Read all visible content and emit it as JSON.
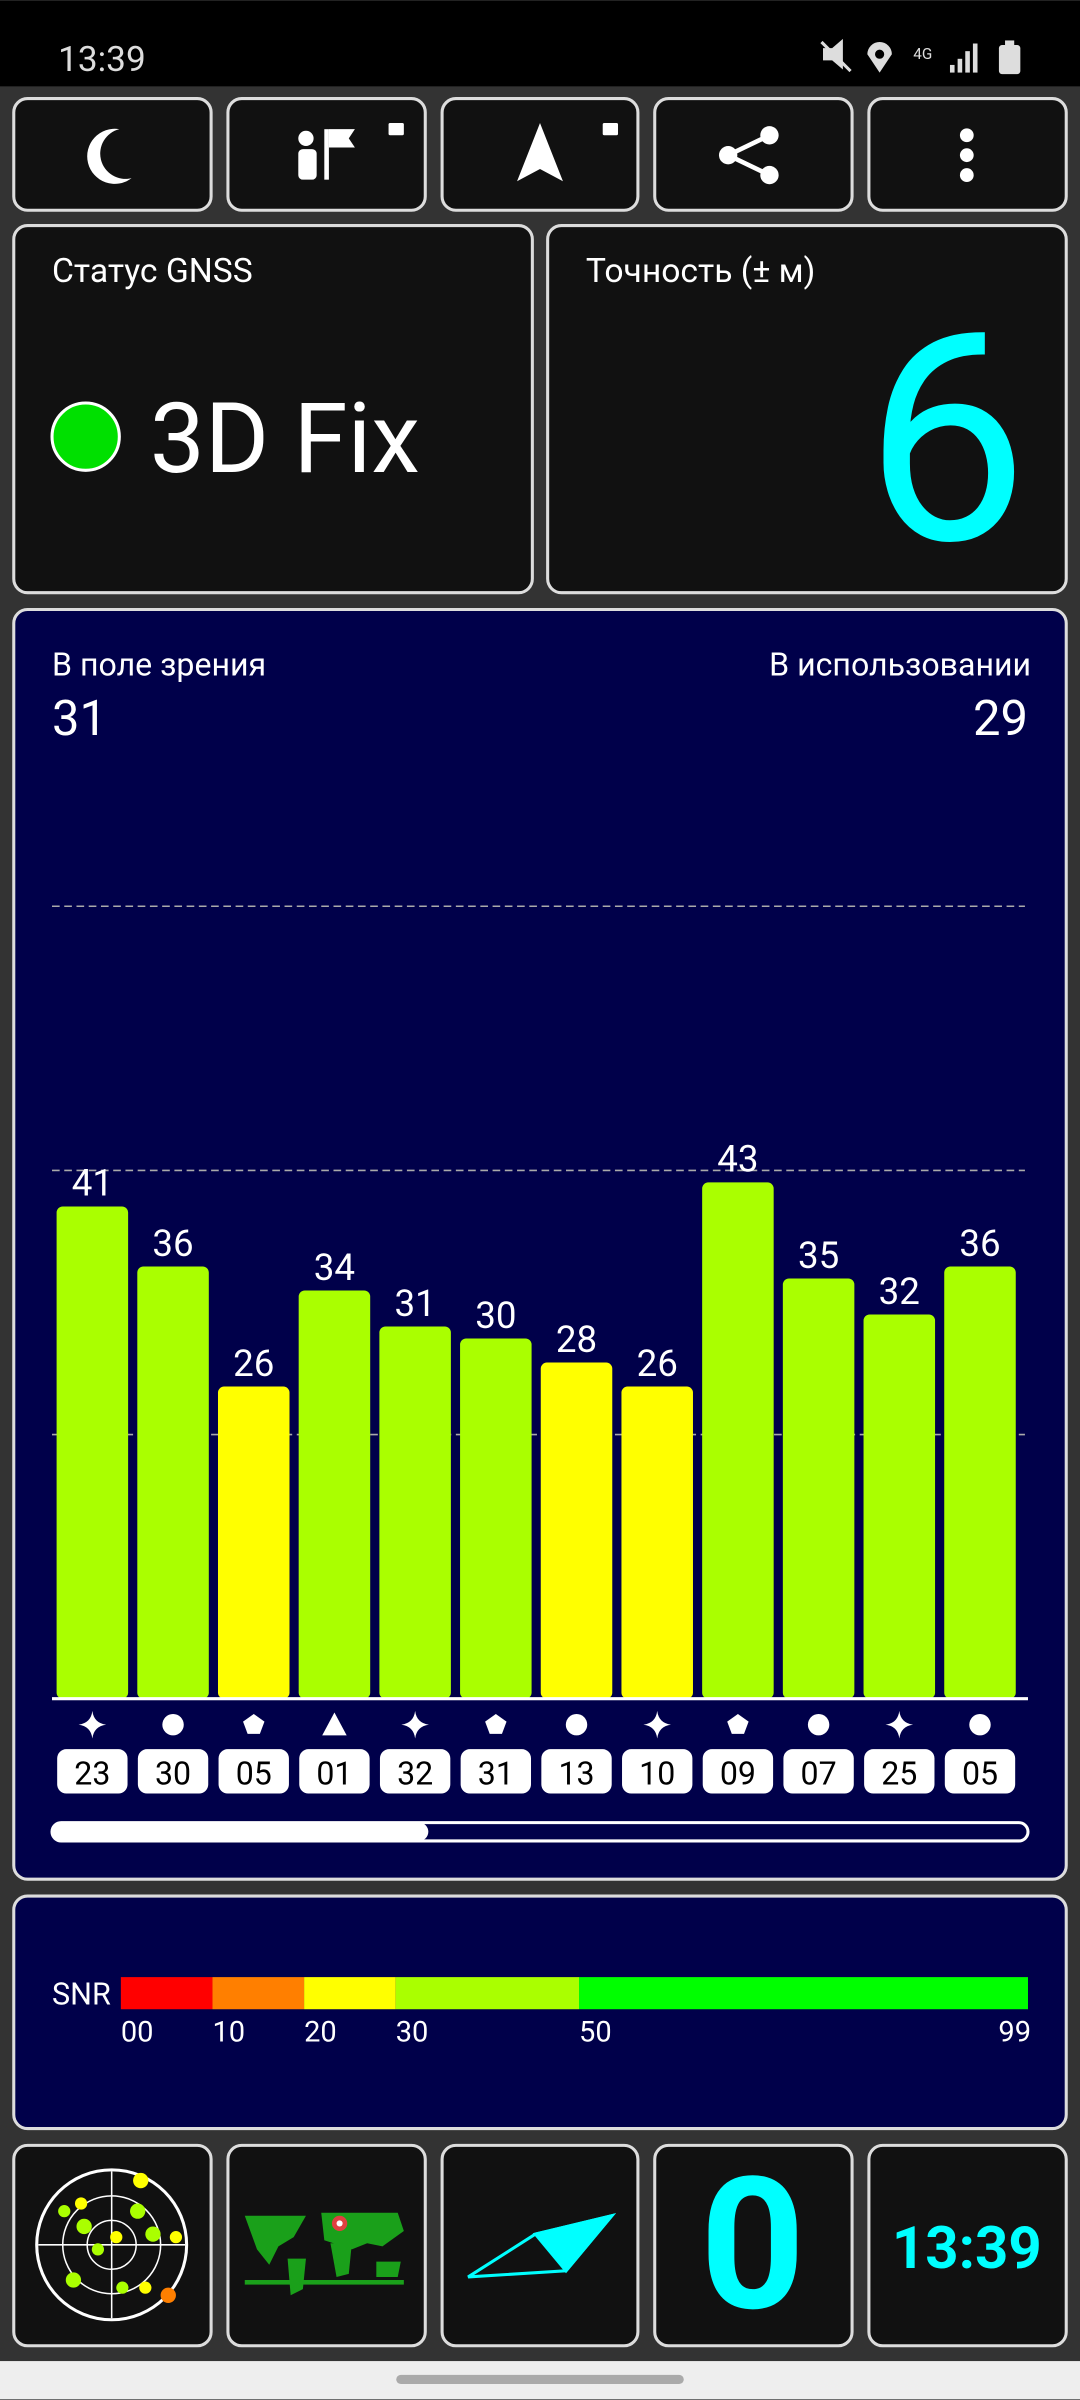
{
  "status_bar": {
    "time": "13:39",
    "network": "4G"
  },
  "gnss_status": {
    "label": "Статус GNSS",
    "value": "3D Fix"
  },
  "accuracy": {
    "label": "Точность (± м)",
    "value": 6
  },
  "signal_chart": {
    "in_view_label": "В поле зрения",
    "in_view": 31,
    "in_use_label": "В использовании",
    "in_use": 29,
    "satellites": [
      "23",
      "30",
      "05",
      "01",
      "32",
      "31",
      "13",
      "10",
      "09",
      "07",
      "25",
      "05"
    ],
    "snr": [
      41,
      36,
      26,
      34,
      31,
      30,
      28,
      26,
      43,
      35,
      32,
      36
    ],
    "ylim": [
      0,
      66
    ],
    "yticks": [
      22,
      44,
      66
    ],
    "grid": true
  },
  "snr_legend": {
    "label": "SNR",
    "ticks": [
      {
        "value": 0,
        "label": "00"
      },
      10,
      20,
      30,
      50,
      99
    ],
    "colors": [
      "#ff0000",
      "#ff7f00",
      "#ffff00",
      "#aaff00",
      "#00ff00"
    ]
  },
  "tiles": {
    "value": 0,
    "clock": "13:39"
  }
}
